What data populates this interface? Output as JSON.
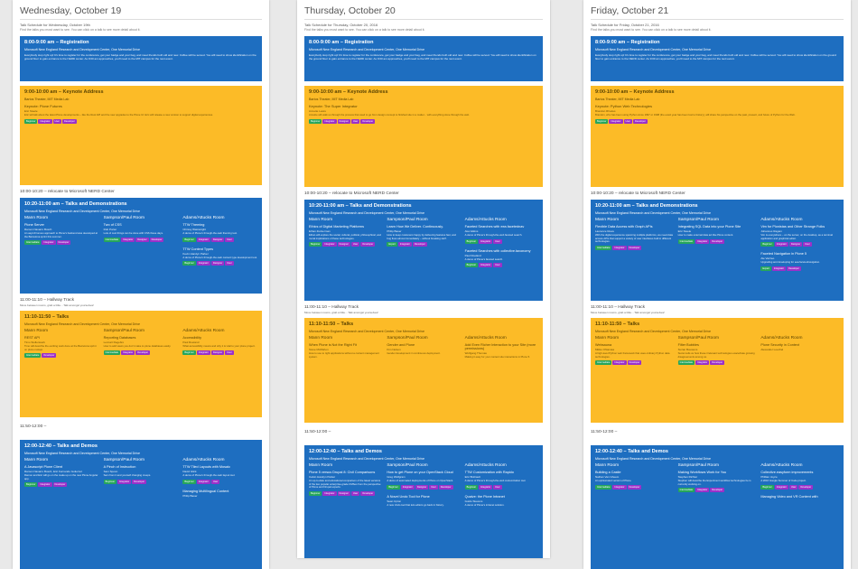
{
  "columns": [
    {
      "day": "Wednesday, October 19",
      "schedule_title": "Talk Schedule for Wednesday, October 19th",
      "note": "Find the talks you most want to see.  You can click on a talk to see more detail about it.",
      "reg_time": "8:00-9:00 am – Registration",
      "reg_loc": "Microsoft New England Research and Development Center, One Memorial Drive",
      "reg_desc": "Everybody stop right up! It's time to register for the conference, get your badge and your bag, and meet friends both old and new.  Coffee will be served.  You will need to show identification on the ground floor to gain entrance to the NERD center.  As 9:00 am approaches, you'll need to the MIT campus for the next event.",
      "keynote_time": "9:00-10:00 am – Keynote Address",
      "keynote_loc": "Bartos Theater, MIT Media Lab",
      "keynote_title": "Keynote: Plone Futures",
      "keynote_speaker": "Eric Steele",
      "keynote_desc": "Eric will talk about the latest Plone developments – like the Rest API and the new upgrades to the Plone UI.  Eric will release a new version to support digital experiences.",
      "keynote_tags": [
        "Beginner",
        "Integrator",
        "User",
        "Developer"
      ],
      "relocate": "10:00-10:20 – relocate to Microsoft NERD Center",
      "talks1_time": "10:20-11:00 am – Talks and Demonstrations",
      "talks1_loc": "Microsoft New England Research and Development Center, One Memorial Drive",
      "talks1_rooms": [
        {
          "room": "Mann Room",
          "title": "Plone Server",
          "speaker": "Ramon Navarro Bosch",
          "desc": "An asynchronous approach to Plone's backend was developed at the Barcelona sprint this summer.",
          "tags": [
            "Intermediate",
            "Integrator",
            "Developer"
          ]
        },
        {
          "room": "Sampson/Paul Room",
          "title": "Two of CSS",
          "speaker": "Rob Porter",
          "desc": "Lots of cool things can be done with CSS these days.",
          "tags": [
            "Intermediate",
            "Integrator",
            "Designer",
            "Developer"
          ]
        },
        {
          "room": "Adams/Attucks Room",
          "title": "TTW Theming",
          "speaker": "Chrissy Wainwright",
          "desc": "A demo of Plone's through-the-web theming tool.",
          "tags": [
            "Beginner",
            "Integrator",
            "Designer",
            "User"
          ],
          "title2": "TTW Content Types",
          "speaker2": "Kevin Handyn Parker",
          "desc2": "A demo of Plone's through-the-web content type development tool.",
          "tags2": [
            "Beginner",
            "Integrator",
            "Designer",
            "User"
          ]
        }
      ],
      "hallway_time": "11:00-11:10 – Hallway Track",
      "hallway_note": "Move between rooms, grab a little... Talk amongst yourselves!",
      "talks2_time": "11:10-11:50 – Talks",
      "talks2_loc": "Microsoft New England Research and Development Center, One Memorial Drive",
      "talks2_rooms": [
        {
          "room": "Mann Room",
          "title": "REST API",
          "speaker": "Timo Stollenwerk",
          "desc": "Timo will describe the exciting work done at the Barcelona sprint on plone.restapi.",
          "tags": [
            "Intermediate",
            "Developer"
          ]
        },
        {
          "room": "Sampson/Paul Room",
          "title": "Reporting Databases",
          "speaker": "Lennart Regebro",
          "desc": "How to add views you don't make to plone databases easily.",
          "tags": [
            "Intermediate",
            "Integrator",
            "Developer"
          ]
        },
        {
          "room": "Adams/Attucks Room",
          "title": "Accessibility",
          "speaker": "Paul Roeland",
          "desc": "What accessibility means and why it is vital to your plone project.",
          "tags": [
            "Beginner",
            "Integrator",
            "Designer",
            "User"
          ]
        }
      ],
      "gap2": "11:50-12:00 –",
      "talks3_time": "12:00-12:40 – Talks and Demos",
      "talks3_loc": "Microsoft New England Research and Development Center, One Memorial Drive",
      "talks3_rooms": [
        {
          "room": "Mann Room",
          "title": "A Javascript Plone Client",
          "speaker": "Ramon Navarro Bosch, Eric Fernando Gutierrez",
          "desc": "Ramon and Eric will go on the make up on the new Plone Angular app.",
          "tags": [
            "Beginner",
            "Integrator",
            "Developer"
          ]
        },
        {
          "room": "Sampson/Paul Room",
          "title": "A Pinch of Instruction",
          "speaker": "Sam Spoon",
          "desc": "Sam from it and yourself changing creeps.",
          "tags": [
            "Beginner",
            "Integrator",
            "Developer"
          ]
        },
        {
          "room": "Adams/Attucks Room",
          "title": "TTW Tiled Layouts with Mosaic",
          "speaker": "David Glick",
          "desc": "A demo of Plone's through-the-web layout tool.",
          "tags": [
            "Beginner",
            "Integrator",
            "User"
          ],
          "title2": "Managing Multilingual Content",
          "speaker2": "Philip Bauer",
          "desc2": "",
          "tags2": []
        }
      ]
    },
    {
      "day": "Thursday, October 20",
      "schedule_title": "Talk Schedule for Thursday, October 20, 2016",
      "note": "Find the talks you most want to see.  You can click on a talk to see more detail about it.",
      "reg_time": "8:00-9:00 am – Registration",
      "reg_loc": "Microsoft New England Research and Development Center, One Memorial Drive",
      "reg_desc": "Everybody stop right up! It's time to register for the conference, get your badge and your bag, and meet friends both old and new.  Coffee will be served.  You will need to show identification on the ground floor to gain entrance to the NERD center.  As 9:00 am approaches, you'll need to the MIT campus for the next event.",
      "keynote_time": "9:00-10:00 am – Keynote Address",
      "keynote_loc": "Bartos Theater, MIT Media Lab",
      "keynote_title": "Keynote: The Super Integrator",
      "keynote_speaker": "Annette Lewis",
      "keynote_desc": "Annette will walk us through the process that used to go from design concept to finished site in a matter... with everything done through the web.",
      "keynote_tags": [
        "Beginner",
        "Integrator",
        "Designer",
        "User",
        "Developer"
      ],
      "relocate": "10:00-10:20 – relocate to Microsoft NERD Center",
      "talks1_time": "10:20-11:00 am – Talks and Demonstrations",
      "talks1_loc": "Microsoft New England Research and Development Center, One Memorial Drive",
      "talks1_rooms": [
        {
          "room": "Mann Room",
          "title": "Ethics of Digital Marketing Platforms",
          "speaker": "Ethan Zuckerman",
          "desc": "Ethan will explore the social, cultural, political, philosophical, and moral implications of these technologies.",
          "tags": [
            "Beginner",
            "Integrator",
            "Designer",
            "User",
            "Developer"
          ]
        },
        {
          "room": "Sampson/Paul Room",
          "title": "Learn How We Deliver. Continuously.",
          "speaker": "Philip Bauer",
          "desc": "How to keep customers happy by delivering features fast, and bug fixes almost immediately – without breaking stuff.",
          "tags": [
            "Expert",
            "Integrator",
            "Developer"
          ]
        },
        {
          "room": "Adams/Attucks Room",
          "title": "Faceted Searches with eea.facetednav",
          "speaker": "Alex Elkins",
          "desc": "A demo of Plone's through-the-web faceted search.",
          "tags": [
            "Beginner",
            "Integrator",
            "User"
          ],
          "title2": "Faceted Searches with collective.taxonomy",
          "speaker2": "Paul Roeland",
          "desc2": "A demo of Plone's faceted search.",
          "tags2": [
            "Beginner",
            "Integrator",
            "User"
          ]
        }
      ],
      "hallway_time": "11:00-11:10 – Hallway Track",
      "hallway_note": "Move between rooms, grab a little... Talk amongst yourselves!",
      "talks2_time": "11:10-11:50 – Talks",
      "talks2_loc": "Microsoft New England Research and Development Center, One Memorial Drive",
      "talks2_rooms": [
        {
          "room": "Mann Room",
          "title": "When Plone is Not the Right Fit",
          "speaker": "Steve McMahon",
          "desc": "How to use to right applications without a content management system.",
          "tags": []
        },
        {
          "room": "Sampson/Paul Room",
          "title": "Gender and Plone",
          "speaker": "Kim Nelson",
          "desc": "Gender development in continuous deployment.",
          "tags": []
        },
        {
          "room": "Adams/Attucks Room",
          "title": "Add Even Richer Interaction to your Site (more permissions)",
          "speaker": "Wolfgang Thomas",
          "desc": "Making it easy for your content site interactions in Plone 5.",
          "tags": []
        }
      ],
      "gap2": "11:50-12:00 –",
      "talks3_time": "12:00-12:40 – Talks and Demos",
      "talks3_loc": "Microsoft New England Research and Development Center, One Memorial Drive",
      "talks3_rooms": [
        {
          "room": "Mann Room",
          "title": "Plone 5 versus Drupal 8: Civil Comparisons",
          "speaker": "Calvin Handyn Parker",
          "desc": "An up-to-date and educational comparison of the latest versions of the two popular enterprise-grade CMSes from the perspective of Plone and Drupal experts.",
          "tags": [
            "Beginner",
            "Integrator",
            "Designer",
            "User",
            "Developer"
          ]
        },
        {
          "room": "Sampson/Paul Room",
          "title": "How to get Plone on your OpenStack Cloud",
          "speaker": "Greg Wolfgram",
          "desc": "A demo of automated deployments of Plone on OpenStack.",
          "tags": [
            "Beginner",
            "Integrator",
            "Designer",
            "User",
            "Developer"
          ],
          "title2": "A Novel Undo Tool for Plone",
          "speaker2": "Sean Upton",
          "desc2": "A new Undo tool that lets editors go back in history.",
          "tags2": []
        },
        {
          "room": "Adams/Attucks Room",
          "title": "TTW Customization with Rapido",
          "speaker": "Eric Bréhault",
          "desc": "A demo of Plone's through-the-web customization tool.",
          "tags": [
            "Beginner",
            "Integrator",
            "User"
          ],
          "title2": "Quaive: the Plone Intranet",
          "speaker2": "Guido Stevens",
          "desc2": "A demo of Plone's intranet solution.",
          "tags2": []
        }
      ]
    },
    {
      "day": "Friday, October 21",
      "schedule_title": "Talk Schedule for Friday, October 21, 2016",
      "note": "Find the talks you most want to see.  You can click on a talk to see more detail about it.",
      "reg_time": "8:00-9:00 am – Registration",
      "reg_loc": "Microsoft New England Research and Development Center, One Memorial Drive",
      "reg_desc": "Everybody stop right up! It's time to register for the conference, get your badge and your bag, and meet friends both old and new.  Coffee will be served.  You will need to show identification on the ground floor to gain entrance to the NERD center.  As 9:00 am approaches, you'll need to the MIT campus for the next event.",
      "keynote_time": "9:00-10:00 am – Keynote Address",
      "keynote_loc": "Bartos Theater, MIT Media Lab",
      "keynote_title": "Keynote: Python Web Technologies",
      "keynote_speaker": "Brandon Rhodes",
      "keynote_desc": "Brandon, who has been using Python since 1997 or 1998 (the exact year has been lost to history), will share his perspective on the past, present, and future of Python for the Web.",
      "keynote_tags": [
        "Beginner",
        "Integrator",
        "User",
        "Developer"
      ],
      "relocate": "10:00-10:20 – relocate to Microsoft NERD Center",
      "talks1_time": "10:20-11:00 am – Talks and Demonstrations",
      "talks1_loc": "Microsoft New England Research and Development Center, One Memorial Drive",
      "talks1_rooms": [
        {
          "room": "Mann Room",
          "title": "Flexible Data Access with Graph APIs",
          "speaker": "Laurence Rowe",
          "desc": "With the digital experience spanning multiple platforms, we need data access APIs that support a variety of user interfaces built in different technologies.",
          "tags": [
            "Intermediate",
            "Integrator",
            "Developer"
          ]
        },
        {
          "room": "Sampson/Paul Room",
          "title": "Integrating SQL Data into your Plone Site",
          "speaker": "Eric Steele",
          "desc": "How to make external data act like Plone content.",
          "tags": [
            "Intermediate",
            "Integrator",
            "Developer"
          ]
        },
        {
          "room": "Adams/Attucks Room",
          "title": "Vim for Plonistas and Other Strange Folks",
          "speaker": "Johannes Ragam",
          "desc": "Vim is everywhere – on the server, on the desktop, as a terminal application and graphical editor.",
          "tags": [
            "Beginner",
            "Integrator",
            "Designer",
            "User"
          ],
          "title2": "Faceted Navigation in Plone 5",
          "speaker2": "Ale Vazzeo",
          "desc2": "Upgrading and developing for eea.facetednavigation.",
          "tags2": [
            "Expert",
            "Integrator",
            "Developer"
          ]
        }
      ],
      "hallway_time": "11:00-11:10 – Hallway Track",
      "hallway_note": "Move between rooms, grab a little... Talk amongst yourselves!",
      "talks2_time": "11:10-11:50 – Talks",
      "talks2_loc": "Microsoft New England Research and Development Center, One Memorial Drive",
      "talks2_rooms": [
        {
          "room": "Mann Room",
          "title": "Websauna",
          "speaker": "Mikko Ohtamaa",
          "desc": "A high-level Python web framework that uses ordinary Python data technologies.",
          "tags": [
            "Intermediate",
            "Integrator",
            "Developer"
          ]
        },
        {
          "room": "Sampson/Paul Room",
          "title": "Filter Bubbles",
          "speaker": "Suzan Bouwens",
          "desc": "Suzan tells us how these irrelevant technologies exacerbate growing disagreements among us.",
          "tags": [
            "Intermediate",
            "Integrator",
            "Developer"
          ]
        },
        {
          "room": "Adams/Attucks Room",
          "title": "Plone Security in Context",
          "speaker": "Alexander Loechel",
          "desc": "",
          "tags": []
        }
      ],
      "gap2": "11:50-12:00 –",
      "talks3_time": "12:00-12:40 – Talks and Demos",
      "talks3_loc": "Microsoft New England Research and Development Center, One Memorial Drive",
      "talks3_rooms": [
        {
          "room": "Mann Room",
          "title": "Building a Castle",
          "speaker": "Nathan Van Gheem",
          "desc": "An opinionated version of Plone.",
          "tags": [
            "Intermediate",
            "Integrator",
            "Developer"
          ]
        },
        {
          "room": "Sampson/Paul Room",
          "title": "Making Workflows Work for You",
          "speaker": "Stephen Richter",
          "desc": "Stephen will describe the Experiment workflow technologies he is currently working on.",
          "tags": [
            "Intermediate",
            "Integrator",
            "Developer"
          ]
        },
        {
          "room": "Adams/Attucks Room",
          "title": "Collective.easyform improvements",
          "speaker": "Phillian Joyce",
          "desc": "A 2016 Google Summer of Code project.",
          "tags": [
            "Beginner",
            "Integrator",
            "User",
            "Developer"
          ],
          "title2": "Managing Video and VR Content with",
          "speaker2": "",
          "desc2": "",
          "tags2": []
        }
      ]
    }
  ]
}
